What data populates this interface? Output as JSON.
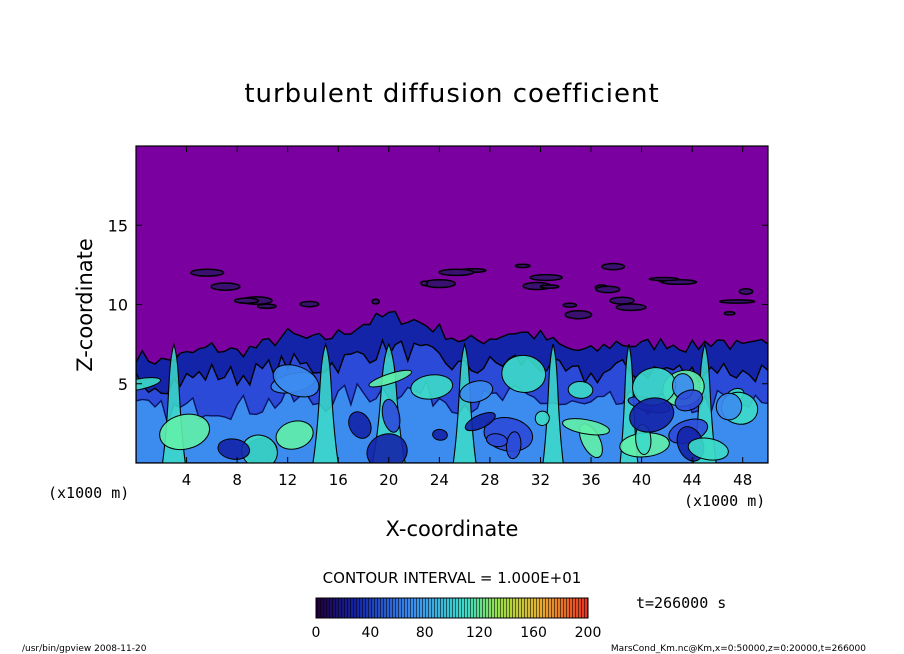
{
  "chart_data": {
    "type": "heatmap",
    "title": "turbulent diffusion coefficient",
    "xlabel": "X-coordinate",
    "ylabel": "Z-coordinate",
    "x_unit": "(x1000 m)",
    "z_unit": "(x1000 m)",
    "xlim": [
      0,
      50
    ],
    "ylim": [
      0,
      20
    ],
    "x_ticks": [
      "4",
      "8",
      "12",
      "16",
      "20",
      "24",
      "28",
      "32",
      "36",
      "40",
      "44",
      "48"
    ],
    "x_tick_values": [
      4,
      8,
      12,
      16,
      20,
      24,
      28,
      32,
      36,
      40,
      44,
      48
    ],
    "y_ticks": [
      "5",
      "10",
      "15"
    ],
    "y_tick_values": [
      5,
      10,
      15
    ],
    "contour_interval": "CONTOUR INTERVAL = 1.000E+01",
    "time_label": "t=266000 s",
    "colorbar": {
      "ticks": [
        "0",
        "40",
        "80",
        "120",
        "160",
        "200"
      ],
      "tick_values": [
        0,
        40,
        80,
        120,
        160,
        200
      ],
      "range": [
        0,
        200
      ]
    },
    "boundary_layer_top": [
      [
        0,
        6.8
      ],
      [
        2,
        6.4
      ],
      [
        4,
        6.8
      ],
      [
        6,
        7.3
      ],
      [
        8,
        7.0
      ],
      [
        10,
        7.4
      ],
      [
        12,
        8.1
      ],
      [
        14,
        7.7
      ],
      [
        16,
        8.1
      ],
      [
        18,
        8.8
      ],
      [
        20,
        9.3
      ],
      [
        22,
        9.0
      ],
      [
        24,
        8.4
      ],
      [
        26,
        7.6
      ],
      [
        28,
        7.9
      ],
      [
        30,
        8.3
      ],
      [
        32,
        8.0
      ],
      [
        34,
        7.2
      ],
      [
        36,
        7.0
      ],
      [
        38,
        7.6
      ],
      [
        40,
        7.4
      ],
      [
        42,
        7.6
      ],
      [
        44,
        7.3
      ],
      [
        46,
        7.8
      ],
      [
        48,
        7.2
      ],
      [
        50,
        7.5
      ]
    ]
  },
  "colors": {
    "background": "#7b00a0",
    "low": "#1424a8",
    "mid_low": "#2c4ad8",
    "mid": "#3c8cf0",
    "high": "#3cdcc8",
    "peak": "#60f0a8"
  },
  "footer": {
    "left": "/usr/bin/gpview  2008-11-20",
    "right": "MarsCond_Km.nc@Km,x=0:50000,z=0:20000,t=266000"
  }
}
